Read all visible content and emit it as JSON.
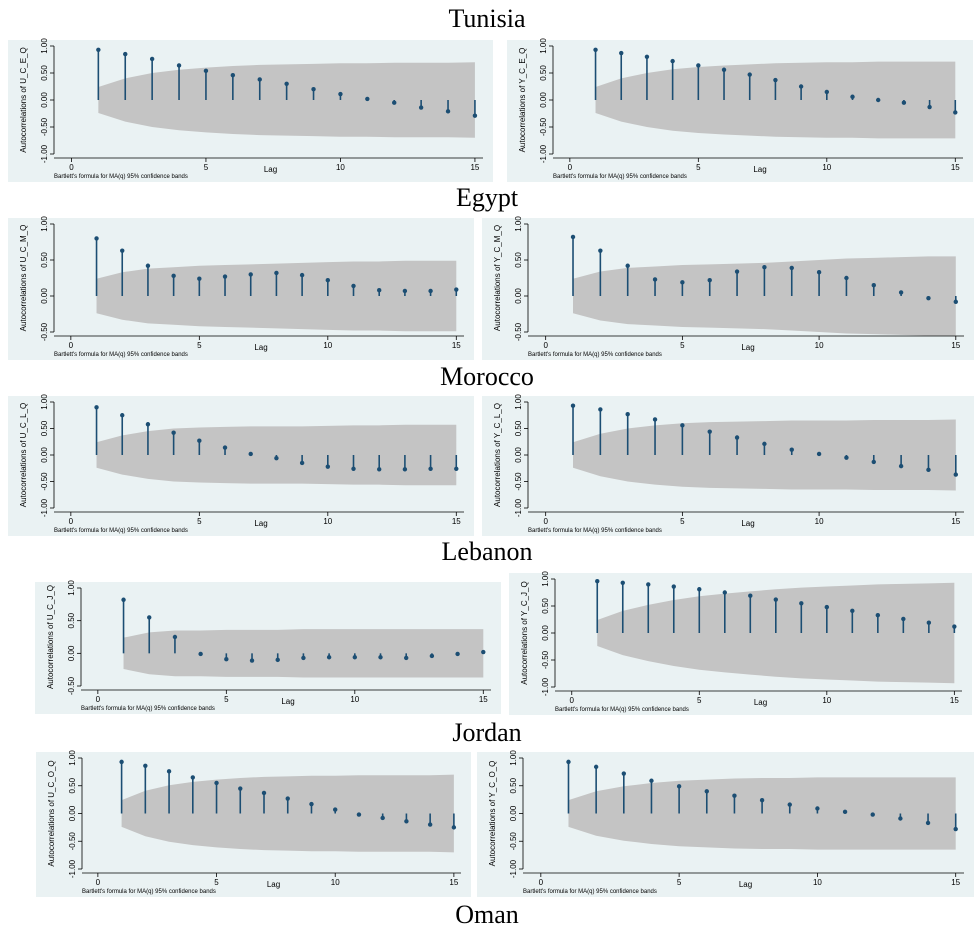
{
  "countries": [
    "Tunisia",
    "Egypt",
    "Morocco",
    "Lebanon",
    "Jordan",
    "Oman"
  ],
  "common": {
    "xlabel": "Lag",
    "note": "Bartlett's formula for MA(q) 95% confidence bands",
    "xticks": [
      0,
      5,
      10,
      15
    ],
    "colors": {
      "band": "#c4c4c4",
      "stem": "#1c4e73",
      "panel_bg": "#eaf2f3"
    }
  },
  "chart_data": [
    {
      "type": "bar",
      "country": "Tunisia",
      "ylabel": "Autocorrelations of U_C_E_Q",
      "ylim": [
        -1,
        1
      ],
      "yticks": [
        -1,
        -0.5,
        0,
        0.5,
        1
      ],
      "ytick_labels": [
        "-1.00",
        "-0.50",
        "0.00",
        "0.50",
        "1.00"
      ],
      "x": [
        1,
        2,
        3,
        4,
        5,
        6,
        7,
        8,
        9,
        10,
        11,
        12,
        13,
        14,
        15
      ],
      "values": [
        0.93,
        0.85,
        0.76,
        0.64,
        0.54,
        0.46,
        0.38,
        0.3,
        0.2,
        0.11,
        0.02,
        -0.05,
        -0.14,
        -0.21,
        -0.29
      ],
      "band": [
        0.24,
        0.4,
        0.5,
        0.56,
        0.6,
        0.63,
        0.65,
        0.66,
        0.67,
        0.68,
        0.68,
        0.69,
        0.69,
        0.69,
        0.7
      ]
    },
    {
      "type": "bar",
      "country": "Tunisia",
      "ylabel": "Autocorrelations of Y_C_E_Q",
      "ylim": [
        -1,
        1
      ],
      "yticks": [
        -1,
        -0.5,
        0,
        0.5,
        1
      ],
      "ytick_labels": [
        "-1.00",
        "-0.50",
        "0.00",
        "0.50",
        "1.00"
      ],
      "x": [
        1,
        2,
        3,
        4,
        5,
        6,
        7,
        8,
        9,
        10,
        11,
        12,
        13,
        14,
        15
      ],
      "values": [
        0.93,
        0.87,
        0.8,
        0.72,
        0.64,
        0.56,
        0.47,
        0.37,
        0.25,
        0.15,
        0.06,
        0.0,
        -0.05,
        -0.13,
        -0.23
      ],
      "band": [
        0.24,
        0.4,
        0.5,
        0.57,
        0.61,
        0.64,
        0.66,
        0.68,
        0.69,
        0.7,
        0.7,
        0.71,
        0.71,
        0.71,
        0.71
      ]
    },
    {
      "type": "bar",
      "country": "Egypt",
      "ylabel": "Autocorrelations of U_C_M_Q",
      "ylim": [
        -0.5,
        1
      ],
      "yticks": [
        -0.5,
        0,
        0.5,
        1
      ],
      "ytick_labels": [
        "-0.50",
        "0.00",
        "0.50",
        "1.00"
      ],
      "x": [
        1,
        2,
        3,
        4,
        5,
        6,
        7,
        8,
        9,
        10,
        11,
        12,
        13,
        14,
        15
      ],
      "values": [
        0.8,
        0.63,
        0.42,
        0.28,
        0.24,
        0.27,
        0.3,
        0.32,
        0.29,
        0.22,
        0.14,
        0.08,
        0.07,
        0.07,
        0.09
      ],
      "band": [
        0.24,
        0.33,
        0.38,
        0.4,
        0.42,
        0.43,
        0.44,
        0.45,
        0.46,
        0.47,
        0.48,
        0.48,
        0.49,
        0.49,
        0.49
      ]
    },
    {
      "type": "bar",
      "country": "Egypt",
      "ylabel": "Autocorrelations of Y_C_M_Q",
      "ylim": [
        -0.5,
        1
      ],
      "yticks": [
        -0.5,
        0,
        0.5,
        1
      ],
      "ytick_labels": [
        "-0.50",
        "0.00",
        "0.50",
        "1.00"
      ],
      "x": [
        1,
        2,
        3,
        4,
        5,
        6,
        7,
        8,
        9,
        10,
        11,
        12,
        13,
        14,
        15
      ],
      "values": [
        0.82,
        0.63,
        0.42,
        0.23,
        0.19,
        0.22,
        0.34,
        0.4,
        0.39,
        0.33,
        0.25,
        0.15,
        0.05,
        -0.03,
        -0.08
      ],
      "band": [
        0.24,
        0.34,
        0.39,
        0.41,
        0.43,
        0.44,
        0.45,
        0.46,
        0.48,
        0.5,
        0.52,
        0.53,
        0.54,
        0.55,
        0.55
      ]
    },
    {
      "type": "bar",
      "country": "Morocco",
      "ylabel": "Autocorrelations of U_C_L_Q",
      "ylim": [
        -1,
        1
      ],
      "yticks": [
        -1,
        -0.5,
        0,
        0.5,
        1
      ],
      "ytick_labels": [
        "-1.00",
        "-0.50",
        "0.00",
        "0.50",
        "1.00"
      ],
      "x": [
        1,
        2,
        3,
        4,
        5,
        6,
        7,
        8,
        9,
        10,
        11,
        12,
        13,
        14,
        15
      ],
      "values": [
        0.9,
        0.75,
        0.58,
        0.42,
        0.27,
        0.14,
        0.02,
        -0.06,
        -0.15,
        -0.22,
        -0.26,
        -0.27,
        -0.27,
        -0.26,
        -0.26
      ],
      "band": [
        0.24,
        0.37,
        0.45,
        0.5,
        0.52,
        0.53,
        0.54,
        0.54,
        0.54,
        0.55,
        0.56,
        0.56,
        0.57,
        0.57,
        0.57
      ]
    },
    {
      "type": "bar",
      "country": "Morocco",
      "ylabel": "Autocorrelations of Y_C_L_Q",
      "ylim": [
        -1,
        1
      ],
      "yticks": [
        -1,
        -0.5,
        0,
        0.5,
        1
      ],
      "ytick_labels": [
        "-1.00",
        "-0.50",
        "0.00",
        "0.50",
        "1.00"
      ],
      "x": [
        1,
        2,
        3,
        4,
        5,
        6,
        7,
        8,
        9,
        10,
        11,
        12,
        13,
        14,
        15
      ],
      "values": [
        0.93,
        0.86,
        0.77,
        0.67,
        0.56,
        0.44,
        0.33,
        0.21,
        0.1,
        0.02,
        -0.05,
        -0.13,
        -0.21,
        -0.28,
        -0.37
      ],
      "band": [
        0.24,
        0.4,
        0.5,
        0.56,
        0.6,
        0.62,
        0.63,
        0.64,
        0.65,
        0.65,
        0.65,
        0.66,
        0.66,
        0.66,
        0.67
      ]
    },
    {
      "type": "bar",
      "country": "Lebanon",
      "ylabel": "Autocorrelations of U_C_J_Q",
      "ylim": [
        -0.5,
        1
      ],
      "yticks": [
        -0.5,
        0,
        0.5,
        1
      ],
      "ytick_labels": [
        "-0.50",
        "0.00",
        "0.50",
        "1.00"
      ],
      "x": [
        1,
        2,
        3,
        4,
        5,
        6,
        7,
        8,
        9,
        10,
        11,
        12,
        13,
        14,
        15
      ],
      "values": [
        0.82,
        0.55,
        0.25,
        -0.01,
        -0.09,
        -0.11,
        -0.1,
        -0.07,
        -0.06,
        -0.06,
        -0.06,
        -0.07,
        -0.04,
        -0.01,
        0.02
      ],
      "band": [
        0.24,
        0.32,
        0.35,
        0.35,
        0.36,
        0.36,
        0.36,
        0.37,
        0.37,
        0.37,
        0.37,
        0.37,
        0.37,
        0.37,
        0.37
      ]
    },
    {
      "type": "bar",
      "country": "Lebanon",
      "ylabel": "Autocorrelations of Y_C_J_Q",
      "ylim": [
        -1,
        1
      ],
      "yticks": [
        -1,
        -0.5,
        0,
        0.5,
        1
      ],
      "ytick_labels": [
        "-1.00",
        "-0.50",
        "0.00",
        "0.50",
        "1.00"
      ],
      "x": [
        1,
        2,
        3,
        4,
        5,
        6,
        7,
        8,
        9,
        10,
        11,
        12,
        13,
        14,
        15
      ],
      "values": [
        0.96,
        0.93,
        0.9,
        0.86,
        0.81,
        0.75,
        0.69,
        0.62,
        0.55,
        0.48,
        0.41,
        0.33,
        0.26,
        0.19,
        0.12
      ],
      "band": [
        0.24,
        0.41,
        0.52,
        0.61,
        0.68,
        0.73,
        0.77,
        0.81,
        0.84,
        0.86,
        0.88,
        0.9,
        0.91,
        0.92,
        0.93
      ]
    },
    {
      "type": "bar",
      "country": "Jordan",
      "ylabel": "Autocorrelations of U_C_O_Q",
      "ylim": [
        -1,
        1
      ],
      "yticks": [
        -1,
        -0.5,
        0,
        0.5,
        1
      ],
      "ytick_labels": [
        "-1.00",
        "-0.50",
        "0.00",
        "0.50",
        "1.00"
      ],
      "x": [
        1,
        2,
        3,
        4,
        5,
        6,
        7,
        8,
        9,
        10,
        11,
        12,
        13,
        14,
        15
      ],
      "values": [
        0.93,
        0.86,
        0.76,
        0.65,
        0.55,
        0.45,
        0.37,
        0.27,
        0.17,
        0.07,
        -0.02,
        -0.08,
        -0.14,
        -0.2,
        -0.25
      ],
      "band": [
        0.24,
        0.41,
        0.51,
        0.57,
        0.61,
        0.64,
        0.66,
        0.67,
        0.68,
        0.68,
        0.69,
        0.69,
        0.69,
        0.69,
        0.7
      ]
    },
    {
      "type": "bar",
      "country": "Jordan",
      "ylabel": "Autocorrelations of Y_C_O_Q",
      "ylim": [
        -1,
        1
      ],
      "yticks": [
        -1,
        -0.5,
        0,
        0.5,
        1
      ],
      "ytick_labels": [
        "-1.00",
        "-0.50",
        "0.00",
        "0.50",
        "1.00"
      ],
      "x": [
        1,
        2,
        3,
        4,
        5,
        6,
        7,
        8,
        9,
        10,
        11,
        12,
        13,
        14,
        15
      ],
      "values": [
        0.93,
        0.84,
        0.72,
        0.59,
        0.49,
        0.4,
        0.32,
        0.24,
        0.16,
        0.09,
        0.03,
        -0.02,
        -0.09,
        -0.17,
        -0.28
      ],
      "band": [
        0.24,
        0.4,
        0.49,
        0.55,
        0.59,
        0.61,
        0.63,
        0.64,
        0.64,
        0.65,
        0.65,
        0.65,
        0.65,
        0.65,
        0.65
      ]
    }
  ]
}
